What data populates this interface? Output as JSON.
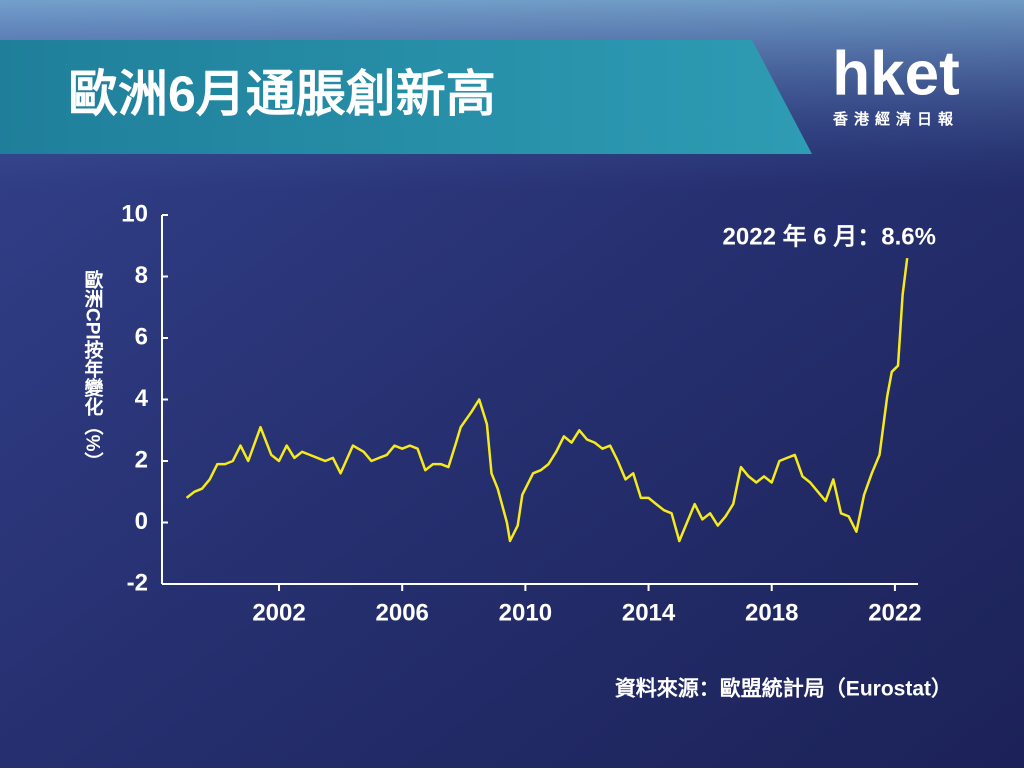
{
  "logo": {
    "name": "hket",
    "tagline": "香港經濟日報"
  },
  "chart_data": {
    "type": "line",
    "title": "歐洲6月通脹創新高",
    "y_label": "歐洲CPI按年變化（%）",
    "annotation": "2022 年 6 月：8.6%",
    "source": "資料來源：歐盟統計局（Eurostat）",
    "color": "#f7ea1a",
    "xlim": [
      1998.2,
      2022.75
    ],
    "xticks": [
      2002,
      2006,
      2010,
      2014,
      2018,
      2022
    ],
    "ylim": [
      -2,
      10
    ],
    "yticks": [
      -2,
      0,
      2,
      4,
      6,
      8,
      10
    ],
    "x": [
      1999.0,
      1999.25,
      1999.5,
      1999.75,
      2000.0,
      2000.25,
      2000.5,
      2000.75,
      2001.0,
      2001.4,
      2001.75,
      2002.0,
      2002.25,
      2002.5,
      2002.75,
      2003.0,
      2003.25,
      2003.5,
      2003.75,
      2004.0,
      2004.4,
      2004.75,
      2005.0,
      2005.25,
      2005.5,
      2005.75,
      2006.0,
      2006.25,
      2006.5,
      2006.75,
      2007.0,
      2007.25,
      2007.5,
      2007.75,
      2007.9,
      2008.25,
      2008.5,
      2008.75,
      2008.9,
      2009.1,
      2009.4,
      2009.5,
      2009.75,
      2009.9,
      2010.25,
      2010.5,
      2010.75,
      2011.0,
      2011.25,
      2011.5,
      2011.75,
      2012.0,
      2012.25,
      2012.5,
      2012.75,
      2013.0,
      2013.25,
      2013.5,
      2013.75,
      2014.0,
      2014.25,
      2014.5,
      2014.75,
      2015.0,
      2015.25,
      2015.5,
      2015.75,
      2016.0,
      2016.25,
      2016.5,
      2016.75,
      2017.0,
      2017.25,
      2017.5,
      2017.75,
      2018.0,
      2018.25,
      2018.5,
      2018.75,
      2019.0,
      2019.25,
      2019.5,
      2019.75,
      2020.0,
      2020.25,
      2020.5,
      2020.75,
      2021.0,
      2021.25,
      2021.5,
      2021.75,
      2021.9,
      2022.1,
      2022.25,
      2022.4
    ],
    "values": [
      0.8,
      1.0,
      1.1,
      1.4,
      1.9,
      1.9,
      2.0,
      2.5,
      2.0,
      3.1,
      2.2,
      2.0,
      2.5,
      2.1,
      2.3,
      2.2,
      2.1,
      2.0,
      2.1,
      1.6,
      2.5,
      2.3,
      2.0,
      2.1,
      2.2,
      2.5,
      2.4,
      2.5,
      2.4,
      1.7,
      1.9,
      1.9,
      1.8,
      2.6,
      3.1,
      3.6,
      4.0,
      3.2,
      1.6,
      1.1,
      0.0,
      -0.6,
      -0.1,
      0.9,
      1.6,
      1.7,
      1.9,
      2.3,
      2.8,
      2.6,
      3.0,
      2.7,
      2.6,
      2.4,
      2.5,
      2.0,
      1.4,
      1.6,
      0.8,
      0.8,
      0.6,
      0.4,
      0.3,
      -0.6,
      0.0,
      0.6,
      0.1,
      0.3,
      -0.1,
      0.2,
      0.6,
      1.8,
      1.5,
      1.3,
      1.5,
      1.3,
      2.0,
      2.1,
      2.2,
      1.5,
      1.3,
      1.0,
      0.7,
      1.4,
      0.3,
      0.2,
      -0.3,
      0.9,
      1.6,
      2.2,
      4.1,
      4.9,
      5.1,
      7.4,
      8.6
    ]
  }
}
